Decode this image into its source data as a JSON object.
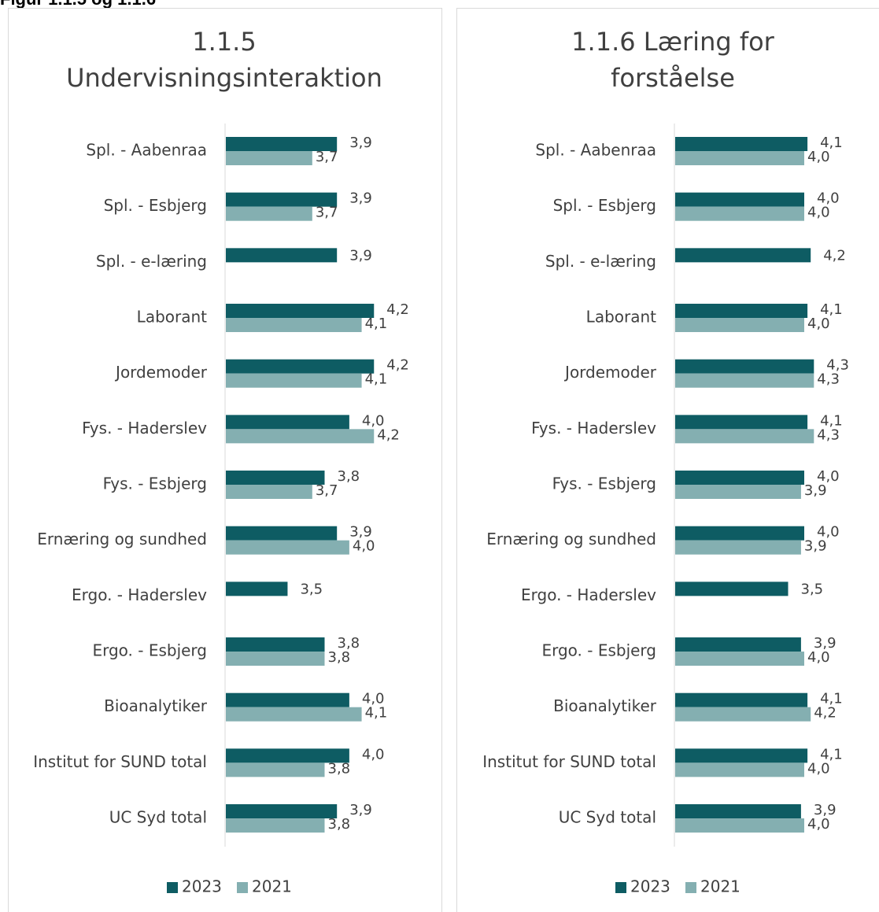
{
  "header": "Figur 1.1.5 og 1.1.6",
  "chart_data": [
    {
      "type": "barh",
      "title": [
        "1.1.5",
        "Undervisningsinteraktion"
      ],
      "categories": [
        "Spl. - Aabenraa",
        "Spl. - Esbjerg",
        "Spl. - e-læring",
        "Laborant",
        "Jordemoder",
        "Fys. - Haderslev",
        "Fys. - Esbjerg",
        "Ernæring og sundhed",
        "Ergo. - Haderslev",
        "Ergo. - Esbjerg",
        "Bioanalytiker",
        "Institut for SUND total",
        "UC Syd total"
      ],
      "xlim": [
        3,
        4.6
      ],
      "series": [
        {
          "name": "2023",
          "color": "#0e5c63",
          "values": [
            3.9,
            3.9,
            3.9,
            4.2,
            4.2,
            4.0,
            3.8,
            3.9,
            3.5,
            3.8,
            4.0,
            4.0,
            3.9
          ],
          "value_labels": [
            "3,9",
            "3,9",
            "3,9",
            "4,2",
            "4,2",
            "4,0",
            "3,8",
            "3,9",
            "3,5",
            "3,8",
            "4,0",
            "4,0",
            "3,9"
          ]
        },
        {
          "name": "2021",
          "color": "#84afb1",
          "values": [
            3.7,
            3.7,
            null,
            4.1,
            4.1,
            4.2,
            3.7,
            4.0,
            null,
            3.8,
            4.1,
            3.8,
            3.8
          ],
          "value_labels": [
            "3,7",
            "3,7",
            null,
            "4,1",
            "4,1",
            "4,2",
            "3,7",
            "4,0",
            null,
            "3,8",
            "4,1",
            "3,8",
            "3,8"
          ]
        }
      ]
    },
    {
      "type": "barh",
      "title": [
        "1.1.6 Læring for",
        "forståelse"
      ],
      "categories": [
        "Spl. - Aabenraa",
        "Spl. - Esbjerg",
        "Spl. - e-læring",
        "Laborant",
        "Jordemoder",
        "Fys. - Haderslev",
        "Fys. - Esbjerg",
        "Ernæring og sundhed",
        "Ergo. - Haderslev",
        "Ergo. - Esbjerg",
        "Bioanalytiker",
        "Institut for SUND total",
        "UC Syd total"
      ],
      "xlim": [
        0,
        5
      ],
      "series": [
        {
          "name": "2023",
          "color": "#0e5c63",
          "values": [
            4.1,
            4.0,
            4.2,
            4.1,
            4.3,
            4.1,
            4.0,
            4.0,
            3.5,
            3.9,
            4.1,
            4.1,
            3.9
          ],
          "value_labels": [
            "4,1",
            "4,0",
            "4,2",
            "4,1",
            "4,3",
            "4,1",
            "4,0",
            "4,0",
            "3,5",
            "3,9",
            "4,1",
            "4,1",
            "3,9"
          ]
        },
        {
          "name": "2021",
          "color": "#84afb1",
          "values": [
            4.0,
            4.0,
            null,
            4.0,
            4.3,
            4.3,
            3.9,
            3.9,
            null,
            4.0,
            4.2,
            4.0,
            4.0
          ],
          "value_labels": [
            "4,0",
            "4,0",
            null,
            "4,0",
            "4,3",
            "4,3",
            "3,9",
            "3,9",
            null,
            "4,0",
            "4,2",
            "4,0",
            "4,0"
          ]
        }
      ]
    }
  ]
}
